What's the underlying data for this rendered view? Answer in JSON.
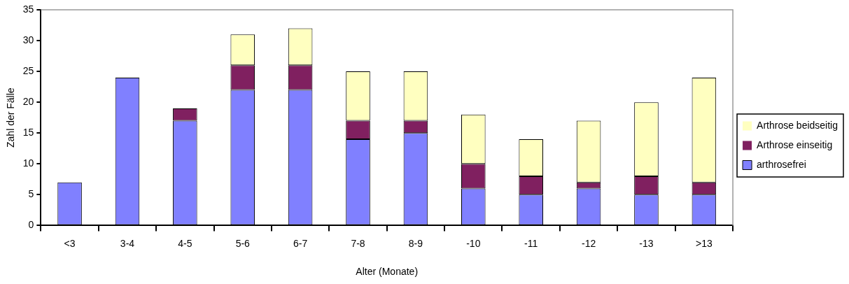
{
  "chart_data": {
    "type": "bar",
    "stacked": true,
    "xlabel": "Alter (Monate)",
    "ylabel": "Zahl der Fälle",
    "categories": [
      "<3",
      "3-4",
      "4-5",
      "5-6",
      "6-7",
      "7-8",
      "8-9",
      "-10",
      "-11",
      "-12",
      "-13",
      ">13"
    ],
    "series": [
      {
        "name": "arthrosefrei",
        "color": "#8080ff",
        "values": [
          7,
          24,
          17,
          22,
          22,
          14,
          15,
          6,
          5,
          6,
          5,
          5
        ]
      },
      {
        "name": "Arthrose einseitig",
        "color": "#802060",
        "values": [
          0,
          0,
          2,
          4,
          4,
          3,
          2,
          4,
          3,
          1,
          3,
          2
        ]
      },
      {
        "name": "Arthrose beidseitig",
        "color": "#ffffc0",
        "values": [
          0,
          0,
          0,
          5,
          6,
          8,
          8,
          8,
          6,
          10,
          12,
          17
        ]
      }
    ],
    "ylim": [
      0,
      35
    ],
    "yticks": [
      0,
      5,
      10,
      15,
      20,
      25,
      30,
      35
    ],
    "grid": false,
    "legend": "right"
  }
}
